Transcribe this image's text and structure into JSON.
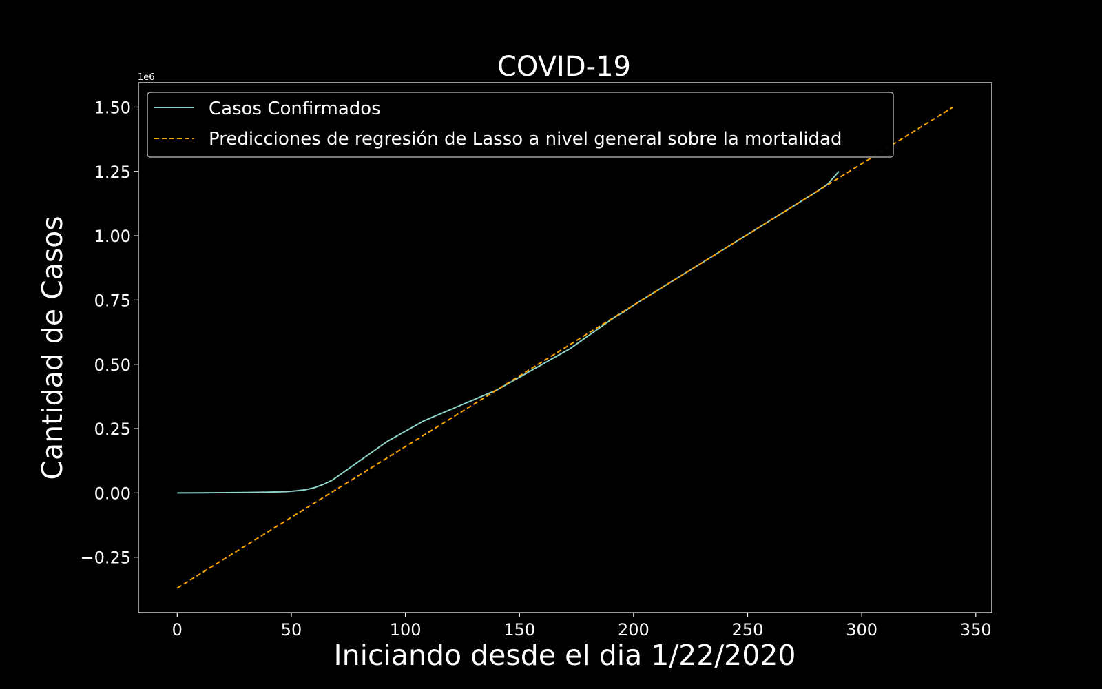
{
  "chart_data": {
    "type": "line",
    "title": "COVID-19",
    "xlabel": "Iniciando desde el dia 1/22/2020",
    "ylabel": "Cantidad de Casos",
    "y_offset_label": "1e6",
    "xlim": [
      -17,
      357
    ],
    "ylim": [
      -0.465,
      1.595
    ],
    "x_ticks": [
      0,
      50,
      100,
      150,
      200,
      250,
      300,
      350
    ],
    "x_tick_labels": [
      "0",
      "50",
      "100",
      "150",
      "200",
      "250",
      "300",
      "350"
    ],
    "y_ticks": [
      -0.25,
      0.0,
      0.25,
      0.5,
      0.75,
      1.0,
      1.25,
      1.5
    ],
    "y_tick_labels": [
      "−0.25",
      "0.00",
      "0.25",
      "0.50",
      "0.75",
      "1.00",
      "1.25",
      "1.50"
    ],
    "grid": false,
    "legend_position": "upper-left",
    "colors": {
      "background": "#000000",
      "foreground": "#ffffff",
      "confirmed": "#8dd3c7",
      "prediction": "#ffa500"
    },
    "series": [
      {
        "name": "Casos Confirmados",
        "style": "solid",
        "x": [
          0,
          10,
          20,
          30,
          40,
          48,
          52,
          56,
          60,
          64,
          68,
          72,
          76,
          80,
          84,
          88,
          92,
          96,
          100,
          104,
          108,
          112,
          116,
          120,
          124,
          128,
          132,
          136,
          140,
          144,
          148,
          152,
          156,
          160,
          164,
          168,
          172,
          176,
          180,
          184,
          188,
          192,
          196,
          200,
          210,
          220,
          230,
          240,
          250,
          260,
          270,
          280,
          285,
          290
        ],
        "y": [
          0.0,
          0.0005,
          0.001,
          0.002,
          0.003,
          0.005,
          0.008,
          0.012,
          0.02,
          0.033,
          0.05,
          0.075,
          0.1,
          0.125,
          0.15,
          0.175,
          0.2,
          0.22,
          0.24,
          0.26,
          0.28,
          0.295,
          0.31,
          0.325,
          0.34,
          0.355,
          0.37,
          0.385,
          0.4,
          0.42,
          0.44,
          0.46,
          0.48,
          0.5,
          0.52,
          0.54,
          0.56,
          0.585,
          0.61,
          0.635,
          0.66,
          0.685,
          0.705,
          0.73,
          0.785,
          0.84,
          0.895,
          0.95,
          1.005,
          1.06,
          1.115,
          1.17,
          1.2,
          1.25
        ]
      },
      {
        "name": "Predicciones de regresión de Lasso a nivel general sobre la mortalidad",
        "style": "dashed",
        "x": [
          0,
          340
        ],
        "y": [
          -0.37,
          1.5
        ]
      }
    ]
  }
}
